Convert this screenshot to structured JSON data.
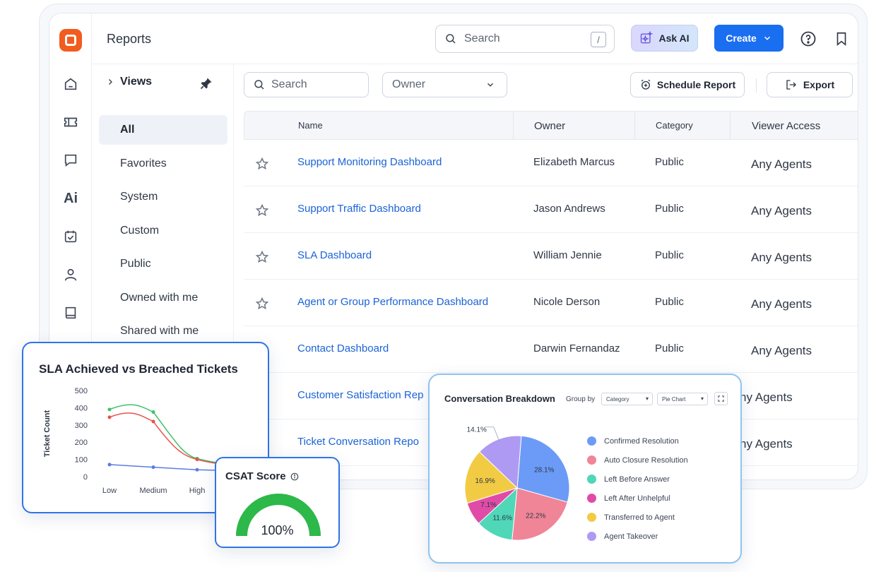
{
  "header": {
    "title": "Reports",
    "search_placeholder": "Search",
    "search_shortcut": "/",
    "ask_ai_label": "Ask AI",
    "create_label": "Create"
  },
  "rail": {
    "icons": [
      "home-icon",
      "ticket-icon",
      "chat-icon",
      "ai-icon",
      "calendar-check-icon",
      "user-icon",
      "book-icon"
    ],
    "ai_label": "Ai"
  },
  "views": {
    "heading": "Views",
    "items": [
      {
        "label": "All",
        "active": true
      },
      {
        "label": "Favorites",
        "active": false
      },
      {
        "label": "System",
        "active": false
      },
      {
        "label": "Custom",
        "active": false
      },
      {
        "label": "Public",
        "active": false
      },
      {
        "label": "Owned with me",
        "active": false
      },
      {
        "label": "Shared with me",
        "active": false
      }
    ]
  },
  "toolbar": {
    "search_placeholder": "Search",
    "owner_placeholder": "Owner",
    "schedule_label": "Schedule Report",
    "export_label": "Export"
  },
  "table": {
    "columns": [
      "Name",
      "Owner",
      "Category",
      "Viewer Access"
    ],
    "rows": [
      {
        "name": "Support Monitoring Dashboard",
        "owner": "Elizabeth Marcus",
        "category": "Public",
        "access": "Any Agents"
      },
      {
        "name": "Support Traffic Dashboard",
        "owner": "Jason Andrews",
        "category": "Public",
        "access": "Any Agents"
      },
      {
        "name": "SLA Dashboard",
        "owner": "William Jennie",
        "category": "Public",
        "access": "Any Agents"
      },
      {
        "name": "Agent or Group Performance Dashboard",
        "owner": "Nicole Derson",
        "category": "Public",
        "access": "Any Agents"
      },
      {
        "name": "Contact Dashboard",
        "owner": "Darwin Fernandaz",
        "category": "Public",
        "access": "Any Agents"
      },
      {
        "name": "Customer Satisfaction Rep",
        "owner": "",
        "category": "",
        "access": "ny Agents"
      },
      {
        "name": "Ticket Conversation Repo",
        "owner": "",
        "category": "",
        "access": "ny Agents"
      }
    ]
  },
  "sla_card": {
    "title": "SLA Achieved vs Breached Tickets"
  },
  "csat_card": {
    "title": "CSAT Score",
    "value": "100%",
    "fraction": 1.0,
    "color": "#2db84a"
  },
  "conv_card": {
    "title": "Conversation Breakdown",
    "group_by_label": "Group by",
    "group_select": "Category",
    "chart_select": "Pie Chart"
  },
  "chart_data": [
    {
      "type": "line",
      "title": "SLA Achieved vs Breached Tickets",
      "xlabel": "",
      "ylabel": "Ticket Count",
      "categories": [
        "Low",
        "Medium",
        "High"
      ],
      "ylim": [
        0,
        500
      ],
      "yticks": [
        "500",
        "400",
        "300",
        "200",
        "100",
        "0"
      ],
      "series": [
        {
          "color": "#3fc16a",
          "values": [
            390,
            375,
            105
          ]
        },
        {
          "color": "#e8534a",
          "values": [
            345,
            320,
            100
          ]
        },
        {
          "color": "#5b7be6",
          "values": [
            70,
            55,
            40
          ]
        }
      ]
    },
    {
      "type": "pie",
      "title": "Conversation Breakdown",
      "slices": [
        {
          "label": "Confirmed Resolution",
          "value": 28.1,
          "text": "28.1%",
          "color": "#6b9bf7"
        },
        {
          "label": "Auto Closure Resolution",
          "value": 22.2,
          "text": "22.2%",
          "color": "#f08598"
        },
        {
          "label": "Left Before Answer",
          "value": 11.6,
          "text": "11.6%",
          "color": "#4fd7b8"
        },
        {
          "label": "Left After Unhelpful",
          "value": 7.1,
          "text": "7.1%",
          "color": "#e04ba7"
        },
        {
          "label": "Transferred to Agent",
          "value": 16.9,
          "text": "16.9%",
          "color": "#f2cb45"
        },
        {
          "label": "Agent Takeover",
          "value": 14.1,
          "text": "14.1%",
          "color": "#ae9af2"
        }
      ]
    }
  ]
}
